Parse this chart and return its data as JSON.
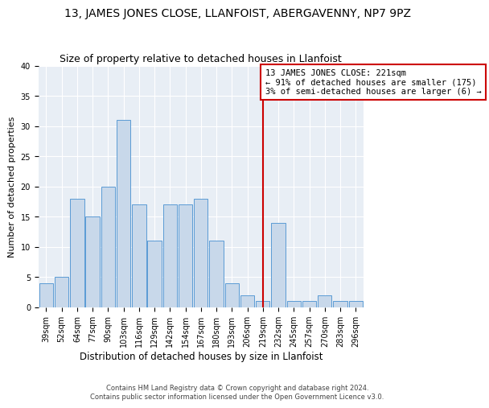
{
  "title1": "13, JAMES JONES CLOSE, LLANFOIST, ABERGAVENNY, NP7 9PZ",
  "title2": "Size of property relative to detached houses in Llanfoist",
  "xlabel": "Distribution of detached houses by size in Llanfoist",
  "ylabel": "Number of detached properties",
  "bar_values": [
    4,
    5,
    18,
    15,
    20,
    31,
    17,
    11,
    17,
    17,
    18,
    11,
    4,
    2,
    1,
    14,
    1,
    1,
    2,
    1,
    1
  ],
  "x_labels": [
    "39sqm",
    "52sqm",
    "64sqm",
    "77sqm",
    "90sqm",
    "103sqm",
    "116sqm",
    "129sqm",
    "142sqm",
    "154sqm",
    "167sqm",
    "180sqm",
    "193sqm",
    "206sqm",
    "219sqm",
    "232sqm",
    "245sqm",
    "257sqm",
    "270sqm",
    "283sqm",
    "296sqm"
  ],
  "bar_color": "#c8d8ea",
  "bar_edge_color": "#5b9bd5",
  "vline_index": 14,
  "vline_color": "#cc0000",
  "annotation_text": "13 JAMES JONES CLOSE: 221sqm\n← 91% of detached houses are smaller (175)\n3% of semi-detached houses are larger (6) →",
  "annotation_box_facecolor": "#ffffff",
  "annotation_box_edge": "#cc0000",
  "footer_text": "Contains HM Land Registry data © Crown copyright and database right 2024.\nContains public sector information licensed under the Open Government Licence v3.0.",
  "bg_color": "#e8eef5",
  "ylim": [
    0,
    40
  ],
  "yticks": [
    0,
    5,
    10,
    15,
    20,
    25,
    30,
    35,
    40
  ],
  "title1_fontsize": 10,
  "title2_fontsize": 9,
  "xlabel_fontsize": 8.5,
  "ylabel_fontsize": 8,
  "tick_fontsize": 7,
  "footer_fontsize": 6,
  "annotation_fontsize": 7.5
}
